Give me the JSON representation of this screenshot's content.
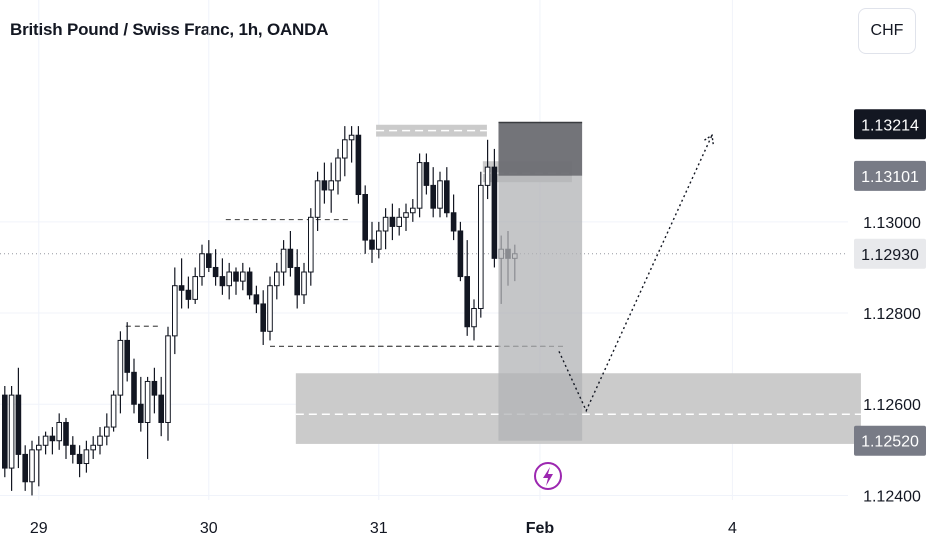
{
  "header": {
    "title": "British Pound / Swiss Franc, 1h, OANDA",
    "currency": "CHF"
  },
  "icons": {
    "lightning": "lightning-bolt-icon"
  },
  "colors": {
    "candle": "#131722",
    "zone": "#c8c8c8",
    "position_dark": "#6b6d72",
    "position_light": "#b2b3b6",
    "tag_dark": "#131722",
    "tag_mid": "#787b86",
    "tag_light": "#e8e9ec",
    "accent": "#9c27b0"
  },
  "chart_data": {
    "type": "candlestick",
    "title": "British Pound / Swiss Franc, 1h, OANDA",
    "ylim": [
      1.1239,
      1.13355
    ],
    "y_ticks": [
      "1.13000",
      "1.12800",
      "1.12600",
      "1.12400"
    ],
    "x_ticks": [
      {
        "label": "29",
        "index": 5
      },
      {
        "label": "30",
        "index": 30
      },
      {
        "label": "31",
        "index": 55
      },
      {
        "label": "Feb",
        "index": 78.7
      },
      {
        "label": "4",
        "index": 107
      }
    ],
    "price_tags": [
      {
        "label": "1.13214",
        "value": 1.13214,
        "style": "dark"
      },
      {
        "label": "1.13101",
        "value": 1.13101,
        "style": "mid"
      },
      {
        "label": "1.12930",
        "value": 1.1293,
        "style": "light"
      },
      {
        "label": "1.12520",
        "value": 1.1252,
        "style": "mid"
      }
    ],
    "last_price": 1.1293,
    "candles": [
      [
        1.1262,
        1.1264,
        1.1244,
        1.1246
      ],
      [
        1.1246,
        1.1264,
        1.1241,
        1.1262
      ],
      [
        1.1262,
        1.1268,
        1.1246,
        1.1249
      ],
      [
        1.1249,
        1.1251,
        1.1241,
        1.1243
      ],
      [
        1.1243,
        1.1252,
        1.124,
        1.125
      ],
      [
        1.125,
        1.1253,
        1.1242,
        1.1251
      ],
      [
        1.1251,
        1.1254,
        1.1249,
        1.1253
      ],
      [
        1.1253,
        1.1255,
        1.1249,
        1.1252
      ],
      [
        1.1252,
        1.1258,
        1.125,
        1.1256
      ],
      [
        1.1256,
        1.1257,
        1.1248,
        1.1251
      ],
      [
        1.1251,
        1.1253,
        1.1247,
        1.1249
      ],
      [
        1.1249,
        1.1251,
        1.1244,
        1.1247
      ],
      [
        1.1247,
        1.1252,
        1.1245,
        1.125
      ],
      [
        1.125,
        1.1253,
        1.1248,
        1.1251
      ],
      [
        1.1251,
        1.1255,
        1.1249,
        1.1253
      ],
      [
        1.1253,
        1.1258,
        1.1251,
        1.1255
      ],
      [
        1.1255,
        1.1263,
        1.1254,
        1.1262
      ],
      [
        1.1262,
        1.1276,
        1.1258,
        1.1274
      ],
      [
        1.1274,
        1.1278,
        1.1265,
        1.1267
      ],
      [
        1.1267,
        1.127,
        1.1258,
        1.126
      ],
      [
        1.126,
        1.1266,
        1.1254,
        1.1256
      ],
      [
        1.1256,
        1.1266,
        1.1248,
        1.1265
      ],
      [
        1.1265,
        1.1268,
        1.1258,
        1.1262
      ],
      [
        1.1262,
        1.1266,
        1.1253,
        1.1256
      ],
      [
        1.1256,
        1.1277,
        1.1252,
        1.1275
      ],
      [
        1.1275,
        1.129,
        1.1271,
        1.1286
      ],
      [
        1.1286,
        1.1292,
        1.1281,
        1.1285
      ],
      [
        1.1285,
        1.1288,
        1.1281,
        1.1283
      ],
      [
        1.1283,
        1.129,
        1.1282,
        1.1288
      ],
      [
        1.1288,
        1.1295,
        1.1286,
        1.1293
      ],
      [
        1.1293,
        1.1296,
        1.1289,
        1.129
      ],
      [
        1.129,
        1.1294,
        1.1286,
        1.1288
      ],
      [
        1.1288,
        1.1292,
        1.1284,
        1.1286
      ],
      [
        1.1286,
        1.1291,
        1.1283,
        1.1289
      ],
      [
        1.1289,
        1.129,
        1.1284,
        1.1287
      ],
      [
        1.1287,
        1.1291,
        1.1285,
        1.1289
      ],
      [
        1.1289,
        1.129,
        1.1283,
        1.1284
      ],
      [
        1.1284,
        1.1286,
        1.128,
        1.1282
      ],
      [
        1.1282,
        1.1285,
        1.1273,
        1.1276
      ],
      [
        1.1276,
        1.1288,
        1.1274,
        1.1286
      ],
      [
        1.1286,
        1.1291,
        1.1283,
        1.1289
      ],
      [
        1.1289,
        1.1296,
        1.1286,
        1.1294
      ],
      [
        1.1294,
        1.1298,
        1.1288,
        1.129
      ],
      [
        1.129,
        1.1294,
        1.1281,
        1.1284
      ],
      [
        1.1284,
        1.1291,
        1.1282,
        1.1289
      ],
      [
        1.1289,
        1.1303,
        1.1286,
        1.1301
      ],
      [
        1.1301,
        1.1311,
        1.1298,
        1.1309
      ],
      [
        1.1309,
        1.1313,
        1.1304,
        1.1307
      ],
      [
        1.1307,
        1.1313,
        1.1302,
        1.1309
      ],
      [
        1.1309,
        1.1316,
        1.1306,
        1.1314
      ],
      [
        1.1314,
        1.1321,
        1.131,
        1.1318
      ],
      [
        1.1318,
        1.1321,
        1.1313,
        1.1319
      ],
      [
        1.1319,
        1.1321,
        1.1304,
        1.1306
      ],
      [
        1.1306,
        1.1308,
        1.1293,
        1.1296
      ],
      [
        1.1296,
        1.13,
        1.1291,
        1.1294
      ],
      [
        1.1294,
        1.13,
        1.1292,
        1.1298
      ],
      [
        1.1298,
        1.1303,
        1.1294,
        1.1301
      ],
      [
        1.1301,
        1.1304,
        1.1296,
        1.1299
      ],
      [
        1.1299,
        1.1303,
        1.1297,
        1.1301
      ],
      [
        1.1301,
        1.1304,
        1.1298,
        1.1302
      ],
      [
        1.1302,
        1.1305,
        1.13,
        1.1303
      ],
      [
        1.1303,
        1.1315,
        1.1301,
        1.1313
      ],
      [
        1.1313,
        1.1315,
        1.1306,
        1.1308
      ],
      [
        1.1308,
        1.1312,
        1.1301,
        1.1303
      ],
      [
        1.1303,
        1.1311,
        1.1301,
        1.1309
      ],
      [
        1.1309,
        1.1312,
        1.1301,
        1.1302
      ],
      [
        1.1302,
        1.1306,
        1.1296,
        1.1298
      ],
      [
        1.1298,
        1.13,
        1.1287,
        1.1288
      ],
      [
        1.1288,
        1.1296,
        1.1275,
        1.1277
      ],
      [
        1.1277,
        1.1283,
        1.1274,
        1.1281
      ],
      [
        1.1281,
        1.1311,
        1.1279,
        1.1308
      ],
      [
        1.1308,
        1.1318,
        1.1305,
        1.1312
      ],
      [
        1.1312,
        1.1316,
        1.129,
        1.1292
      ],
      [
        1.1292,
        1.1297,
        1.1282,
        1.1294
      ],
      [
        1.1294,
        1.1298,
        1.1286,
        1.1292
      ],
      [
        1.1292,
        1.1295,
        1.1287,
        1.1293
      ]
    ],
    "zones": [
      {
        "top": 1.12668,
        "bottom": 1.12513,
        "x_start": 42.8,
        "x_end": 125.9,
        "mid": 1.12578
      },
      {
        "top": 1.13213,
        "bottom": 1.13187,
        "x_start": 54.6,
        "x_end": 70.9,
        "mid": 1.132
      },
      {
        "top": 1.13133,
        "bottom": 1.13087,
        "x_start": 70.3,
        "x_end": 83.4,
        "mid": 1.13107
      }
    ],
    "position": {
      "x_start": 72.6,
      "x_end": 84.9,
      "top": 1.13218,
      "stop": 1.13101,
      "bottom": 1.1252
    },
    "levels": [
      {
        "value": 1.12771,
        "x_start": 17.8,
        "x_end": 22.8
      },
      {
        "value": 1.13005,
        "x_start": 32.5,
        "x_end": 51.0
      },
      {
        "value": 1.12727,
        "x_start": 39.0,
        "x_end": 82.5
      },
      {
        "value": 1.12727,
        "x_start": 51.0,
        "x_end": 80.0
      }
    ],
    "projection": [
      [
        81.5,
        1.12716
      ],
      [
        85.5,
        1.12586
      ],
      [
        104.0,
        1.1319
      ]
    ]
  }
}
